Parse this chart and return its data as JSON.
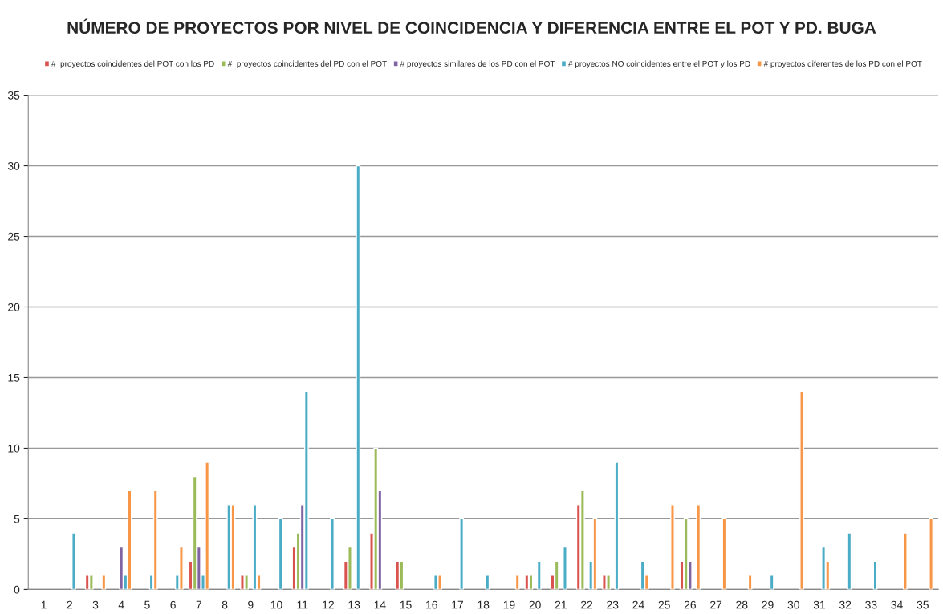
{
  "chart_data": {
    "type": "bar",
    "title": "NÚMERO DE PROYECTOS POR NIVEL DE COINCIDENCIA Y DIFERENCIA ENTRE EL POT Y PD. BUGA",
    "categories": [
      "1",
      "2",
      "3",
      "4",
      "5",
      "6",
      "7",
      "8",
      "9",
      "10",
      "11",
      "12",
      "13",
      "14",
      "15",
      "16",
      "17",
      "18",
      "19",
      "20",
      "21",
      "22",
      "23",
      "24",
      "25",
      "26",
      "27",
      "28",
      "29",
      "30",
      "31",
      "32",
      "33",
      "34",
      "35"
    ],
    "series": [
      {
        "name": "#  proyectos coincidentes del POT con los PD",
        "color": "#d9534f",
        "values": [
          null,
          null,
          1,
          null,
          null,
          null,
          2,
          null,
          1,
          null,
          3,
          null,
          2,
          4,
          2,
          null,
          null,
          null,
          null,
          1,
          1,
          6,
          1,
          null,
          null,
          2,
          null,
          null,
          null,
          null,
          null,
          null,
          null,
          null,
          null
        ]
      },
      {
        "name": "#  proyectos coincidentes del PD con el POT",
        "color": "#9bbb59",
        "values": [
          null,
          null,
          1,
          null,
          null,
          null,
          8,
          null,
          1,
          null,
          4,
          null,
          3,
          10,
          2,
          null,
          null,
          null,
          null,
          1,
          2,
          7,
          1,
          null,
          null,
          5,
          null,
          null,
          null,
          null,
          null,
          null,
          null,
          null,
          null
        ]
      },
      {
        "name": "# proyectos similares de los PD con el POT",
        "color": "#8064a2",
        "values": [
          null,
          null,
          null,
          3,
          null,
          null,
          3,
          null,
          null,
          null,
          6,
          null,
          null,
          7,
          null,
          null,
          null,
          null,
          null,
          null,
          null,
          null,
          null,
          null,
          null,
          2,
          null,
          null,
          null,
          null,
          null,
          null,
          null,
          null,
          null
        ]
      },
      {
        "name": "# proyectos NO coincidentes entre el POT y los PD",
        "color": "#4bacc6",
        "values": [
          null,
          4,
          null,
          1,
          1,
          1,
          1,
          6,
          6,
          5,
          14,
          5,
          30,
          null,
          null,
          1,
          5,
          1,
          null,
          2,
          3,
          2,
          9,
          2,
          null,
          null,
          null,
          null,
          1,
          null,
          3,
          4,
          2,
          null,
          null
        ]
      },
      {
        "name": "# proyectos diferentes de los PD con el POT",
        "color": "#f79646",
        "values": [
          null,
          null,
          1,
          7,
          7,
          3,
          9,
          6,
          1,
          null,
          null,
          null,
          null,
          null,
          null,
          1,
          null,
          null,
          1,
          null,
          null,
          5,
          null,
          1,
          6,
          6,
          5,
          1,
          null,
          14,
          2,
          null,
          null,
          4,
          5
        ]
      }
    ],
    "ylim": [
      0,
      35
    ],
    "yticks": [
      0,
      5,
      10,
      15,
      20,
      25,
      30,
      35
    ],
    "grid": "y",
    "legend": "top"
  }
}
